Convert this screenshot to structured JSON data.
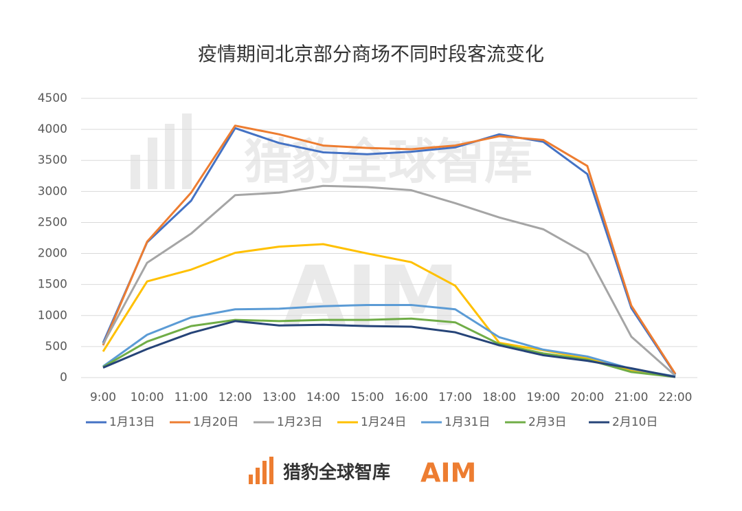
{
  "chart_data": {
    "type": "line",
    "title": "疫情期间北京部分商场不同时段客流变化",
    "categories": [
      "9:00",
      "10:00",
      "11:00",
      "12:00",
      "13:00",
      "14:00",
      "15:00",
      "16:00",
      "17:00",
      "18:00",
      "19:00",
      "20:00",
      "21:00",
      "22:00"
    ],
    "series": [
      {
        "name": "1月13日",
        "color": "#4472c4",
        "values": [
          560,
          2180,
          2850,
          4020,
          3780,
          3630,
          3600,
          3640,
          3710,
          3920,
          3800,
          3280,
          1120,
          50
        ]
      },
      {
        "name": "1月20日",
        "color": "#ed7d31",
        "values": [
          520,
          2190,
          2980,
          4060,
          3920,
          3740,
          3700,
          3680,
          3740,
          3890,
          3830,
          3410,
          1160,
          60
        ]
      },
      {
        "name": "1月23日",
        "color": "#a5a5a5",
        "values": [
          540,
          1850,
          2320,
          2940,
          2980,
          3090,
          3070,
          3020,
          2810,
          2580,
          2390,
          1990,
          660,
          30
        ]
      },
      {
        "name": "1月24日",
        "color": "#ffc000",
        "values": [
          420,
          1550,
          1740,
          2010,
          2110,
          2150,
          2000,
          1860,
          1480,
          560,
          440,
          310,
          120,
          20
        ]
      },
      {
        "name": "1月31日",
        "color": "#5b9bd5",
        "values": [
          180,
          690,
          970,
          1100,
          1110,
          1150,
          1170,
          1170,
          1100,
          650,
          450,
          340,
          140,
          20
        ]
      },
      {
        "name": "2月3日",
        "color": "#70ad47",
        "values": [
          170,
          580,
          830,
          930,
          910,
          930,
          930,
          950,
          890,
          540,
          390,
          290,
          90,
          10
        ]
      },
      {
        "name": "2月10日",
        "color": "#264478",
        "values": [
          160,
          460,
          720,
          910,
          840,
          850,
          830,
          820,
          730,
          520,
          360,
          270,
          150,
          10
        ]
      }
    ],
    "ylim": [
      0,
      4500
    ],
    "yticks": [
      0,
      500,
      1000,
      1500,
      2000,
      2500,
      3000,
      3500,
      4000,
      4500
    ],
    "grid": true,
    "annotations": [
      "猎豹全球智库",
      "AIM"
    ]
  }
}
